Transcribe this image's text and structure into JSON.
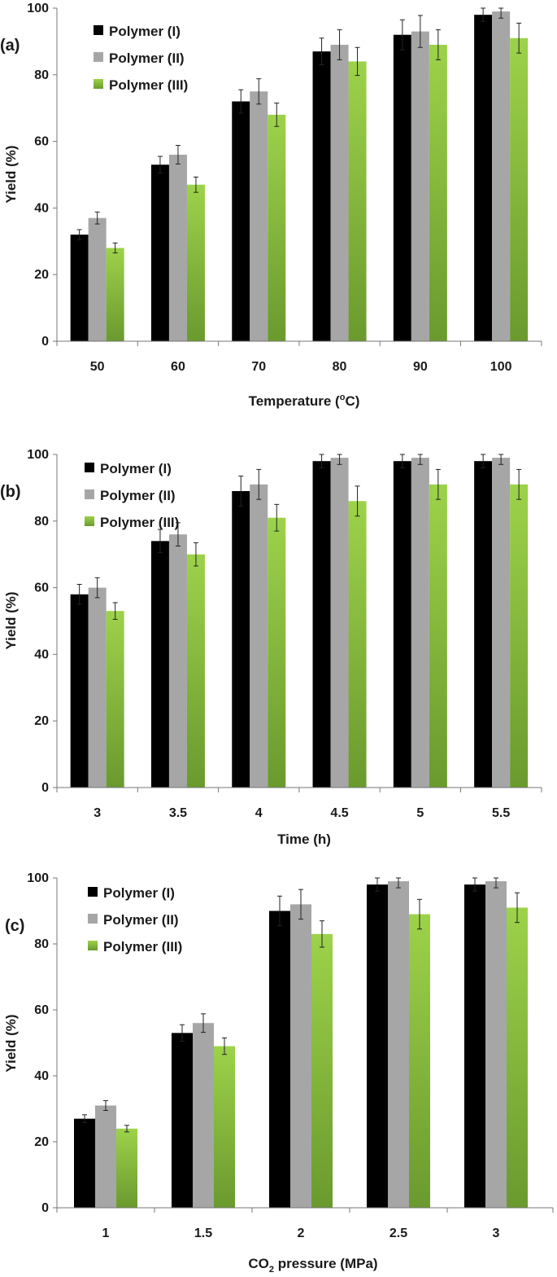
{
  "chart_data": [
    {
      "type": "bar",
      "panel_label": "(a)",
      "title": "",
      "xlabel": "Temperature",
      "xlabel_unit_prefix": "(",
      "xlabel_unit_super": "o",
      "xlabel_unit_main": "C)",
      "ylabel": "Yield (%)",
      "ylim": [
        0,
        100
      ],
      "yticks": [
        "0",
        "20",
        "40",
        "60",
        "80",
        "100"
      ],
      "categories": [
        "50",
        "60",
        "70",
        "80",
        "90",
        "100"
      ],
      "legend_position": "top-left",
      "series": [
        {
          "name": "Polymer (I)",
          "color": "#000000",
          "values": [
            32,
            53,
            72,
            87,
            92,
            98
          ],
          "errors": [
            1.5,
            2.5,
            3.5,
            4,
            4.5,
            2
          ]
        },
        {
          "name": "Polymer (II)",
          "color": "#a6a6a6",
          "values": [
            37,
            56,
            75,
            89,
            93,
            99
          ],
          "errors": [
            1.8,
            2.8,
            3.8,
            4.5,
            4.8,
            2
          ]
        },
        {
          "name": "Polymer (III)",
          "color": "#8cc13f",
          "values": [
            28,
            47,
            68,
            84,
            89,
            91
          ],
          "errors": [
            1.5,
            2.3,
            3.5,
            4.2,
            4.5,
            4.5
          ]
        }
      ]
    },
    {
      "type": "bar",
      "panel_label": "(b)",
      "title": "",
      "xlabel": "Time (h)",
      "ylabel": "Yield (%)",
      "ylim": [
        0,
        100
      ],
      "yticks": [
        "0",
        "20",
        "40",
        "60",
        "80",
        "100"
      ],
      "categories": [
        "3",
        "3.5",
        "4",
        "4.5",
        "5",
        "5.5"
      ],
      "legend_position": "top-left",
      "series": [
        {
          "name": "Polymer (I)",
          "color": "#000000",
          "values": [
            58,
            74,
            89,
            98,
            98,
            98
          ],
          "errors": [
            3,
            3.5,
            4.5,
            2,
            2,
            2
          ]
        },
        {
          "name": "Polymer (II)",
          "color": "#a6a6a6",
          "values": [
            60,
            76,
            91,
            99,
            99,
            99
          ],
          "errors": [
            3,
            3.5,
            4.5,
            2,
            2,
            2
          ]
        },
        {
          "name": "Polymer (III)",
          "color": "#8cc13f",
          "values": [
            53,
            70,
            81,
            86,
            91,
            91
          ],
          "errors": [
            2.5,
            3.5,
            4,
            4.5,
            4.5,
            4.5
          ]
        }
      ]
    },
    {
      "type": "bar",
      "panel_label": "(c)",
      "title": "",
      "xlabel_pre": "CO",
      "xlabel_sub": "2",
      "xlabel_post": " pressure (MPa)",
      "ylabel": "Yield (%)",
      "ylim": [
        0,
        100
      ],
      "yticks": [
        "0",
        "20",
        "40",
        "60",
        "80",
        "100"
      ],
      "categories": [
        "1",
        "1.5",
        "2",
        "2.5",
        "3"
      ],
      "legend_position": "top-left",
      "series": [
        {
          "name": "Polymer (I)",
          "color": "#000000",
          "values": [
            27,
            53,
            90,
            98,
            98
          ],
          "errors": [
            1.2,
            2.5,
            4.5,
            2,
            2
          ]
        },
        {
          "name": "Polymer (II)",
          "color": "#a6a6a6",
          "values": [
            31,
            56,
            92,
            99,
            99
          ],
          "errors": [
            1.5,
            2.8,
            4.5,
            2,
            2
          ]
        },
        {
          "name": "Polymer (III)",
          "color": "#8cc13f",
          "values": [
            24,
            49,
            83,
            89,
            91
          ],
          "errors": [
            1,
            2.5,
            4,
            4.5,
            4.5
          ]
        }
      ]
    }
  ]
}
